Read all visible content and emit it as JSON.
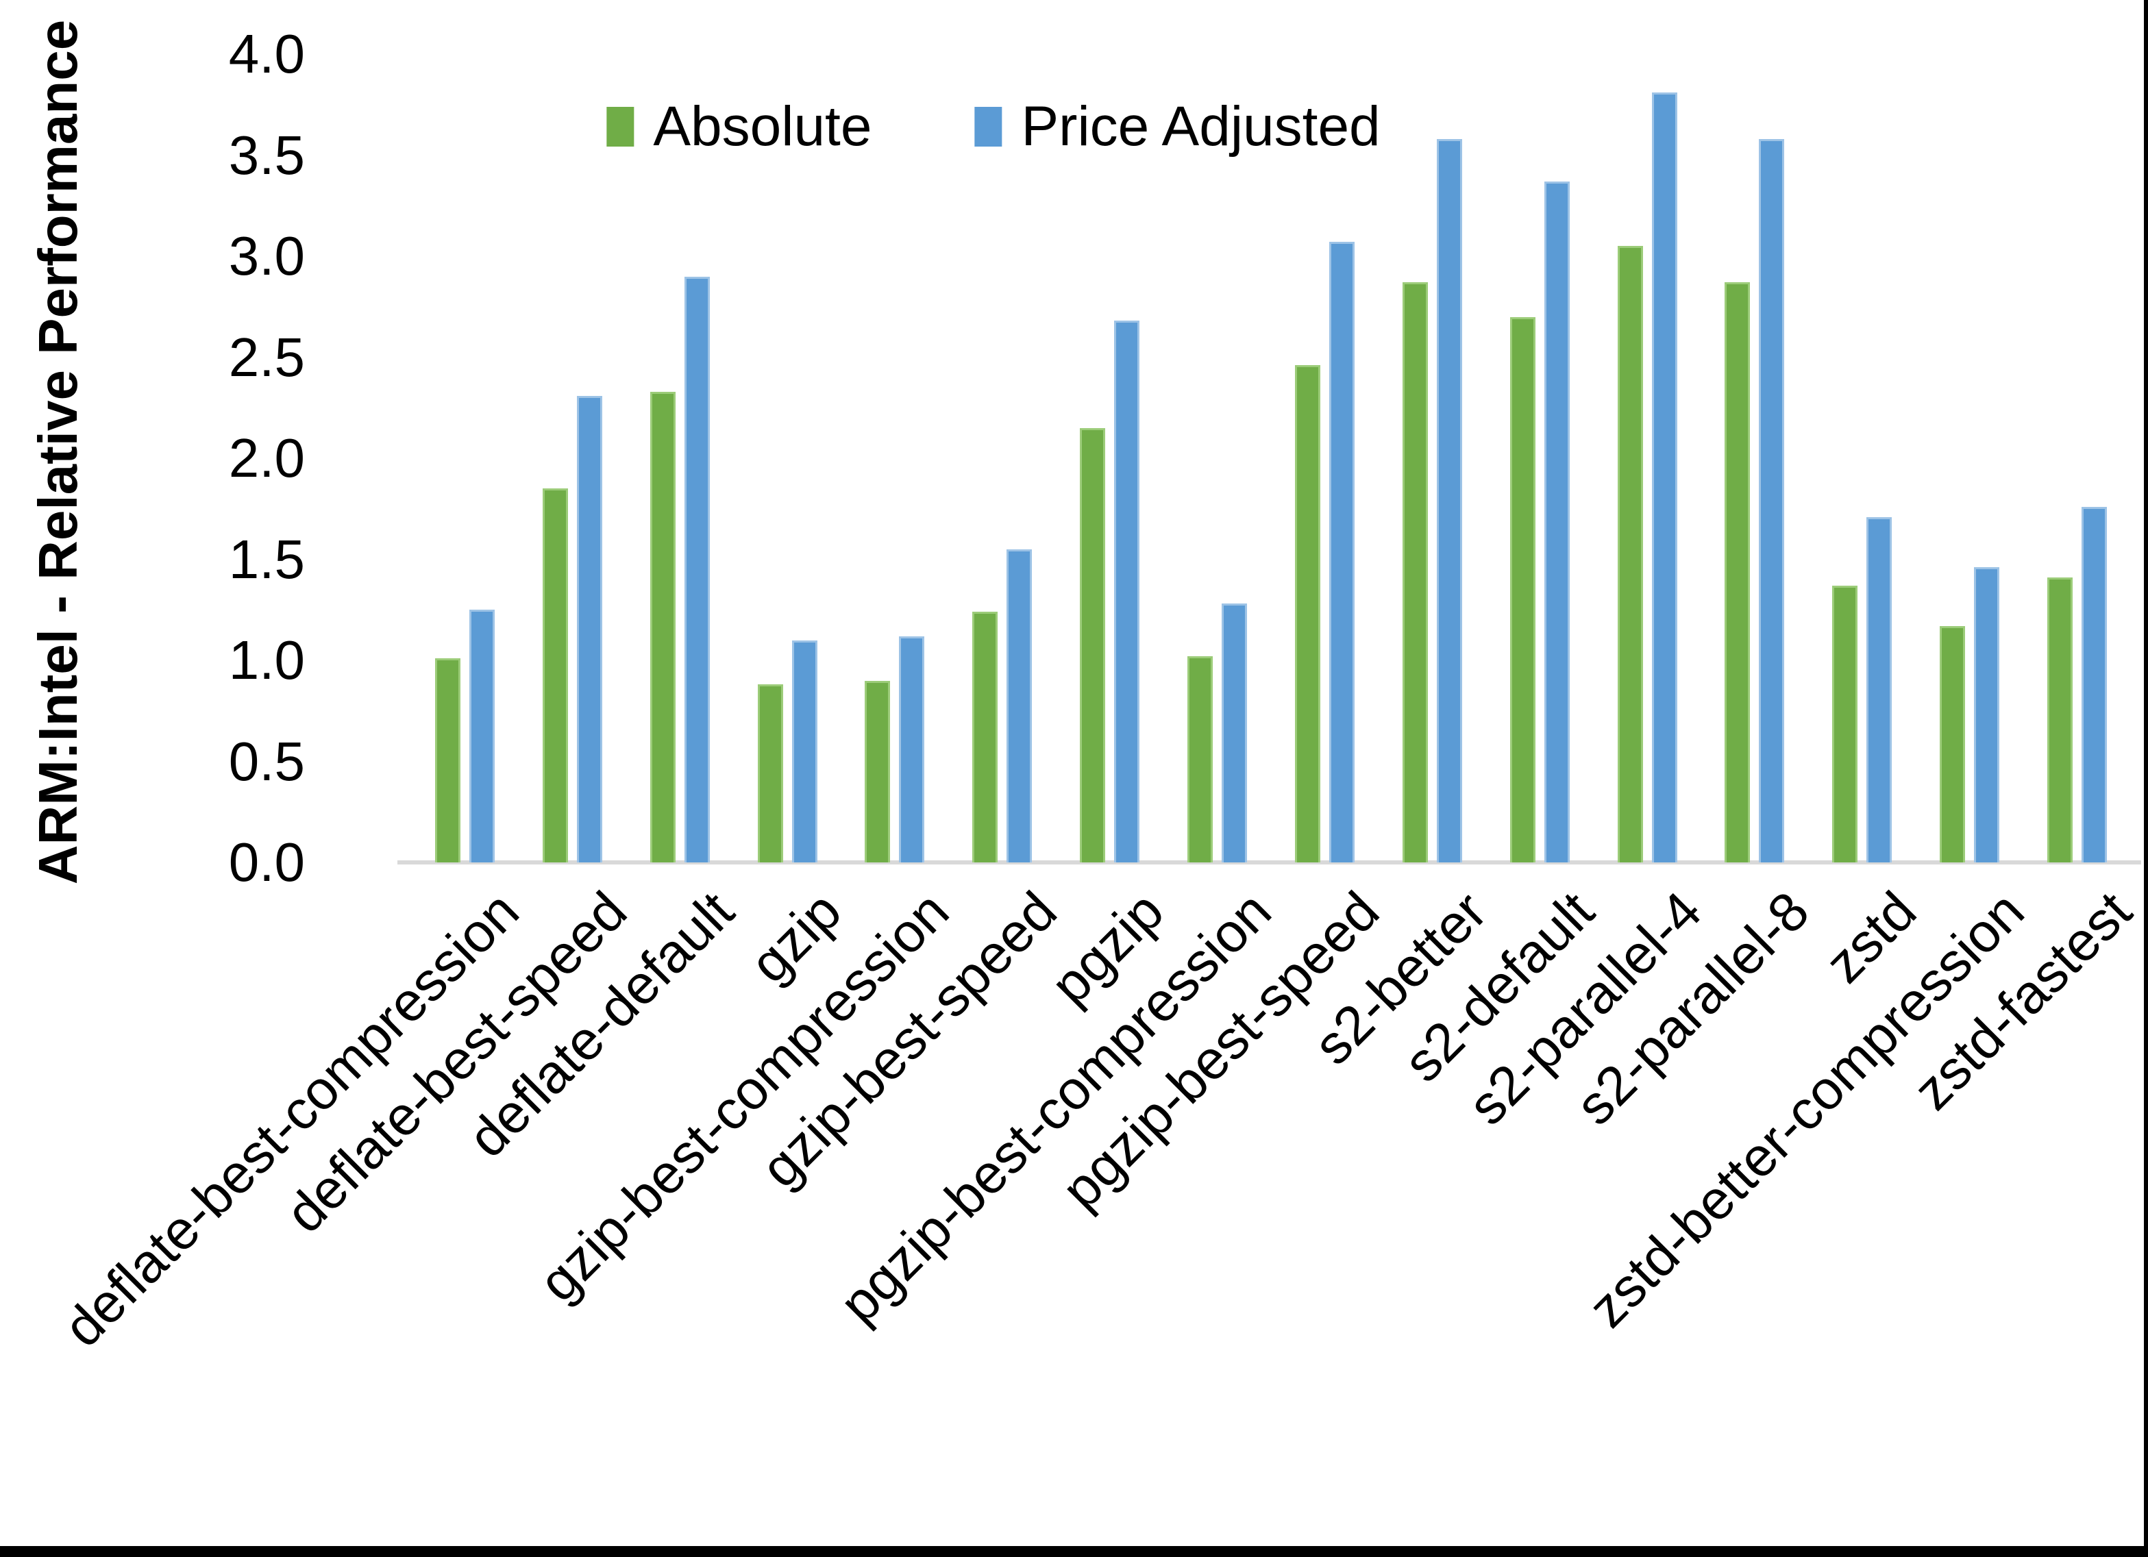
{
  "figure": {
    "background": "#ffffff",
    "frame_color": "#000000",
    "axis_line_color": "#d9d9d9",
    "text_color": "#000000"
  },
  "legend": {
    "items": [
      {
        "label": "Absolute",
        "color": "#70ad47"
      },
      {
        "label": "Price Adjusted",
        "color": "#5b9bd5"
      }
    ]
  },
  "chart_data": {
    "type": "bar",
    "title": "",
    "xlabel": "",
    "ylabel": "ARM:Intel - Relative Performance",
    "ylim": [
      0.0,
      4.0
    ],
    "ytick_step": 0.5,
    "ytick_labels": [
      "0.0",
      "0.5",
      "1.0",
      "1.5",
      "2.0",
      "2.5",
      "3.0",
      "3.5",
      "4.0"
    ],
    "grid": false,
    "legend_position": "top-center",
    "bar_orientation": "vertical",
    "categories": [
      "deflate-best-compression",
      "deflate-best-speed",
      "deflate-default",
      "gzip",
      "gzip-best-compression",
      "gzip-best-speed",
      "pgzip",
      "pgzip-best-compression",
      "pgzip-best-speed",
      "s2-better",
      "s2-default",
      "s2-parallel-4",
      "s2-parallel-8",
      "zstd",
      "zstd-better-compression",
      "zstd-fastest"
    ],
    "series": [
      {
        "name": "Absolute",
        "color": "#70ad47",
        "values": [
          1.01,
          1.85,
          2.33,
          0.88,
          0.9,
          1.24,
          2.15,
          1.02,
          2.46,
          2.87,
          2.7,
          3.05,
          2.87,
          1.37,
          1.17,
          1.41
        ]
      },
      {
        "name": "Price Adjusted",
        "color": "#5b9bd5",
        "values": [
          1.25,
          2.31,
          2.9,
          1.1,
          1.12,
          1.55,
          2.68,
          1.28,
          3.07,
          3.58,
          3.37,
          3.81,
          3.58,
          1.71,
          1.46,
          1.76
        ]
      }
    ]
  }
}
